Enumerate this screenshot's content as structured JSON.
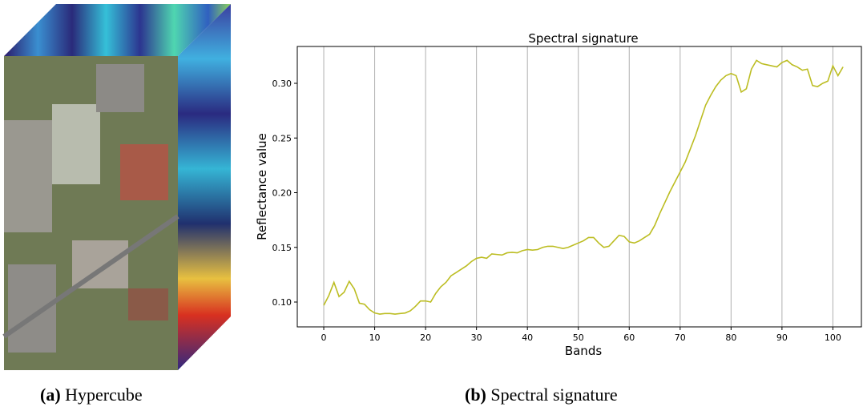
{
  "chart_data": {
    "type": "line",
    "title": "Spectral signature",
    "xlabel": "Bands",
    "ylabel": "Reflectance value",
    "x": [
      0,
      1,
      2,
      3,
      4,
      5,
      6,
      7,
      8,
      9,
      10,
      11,
      12,
      13,
      14,
      15,
      16,
      17,
      18,
      19,
      20,
      21,
      22,
      23,
      24,
      25,
      26,
      27,
      28,
      29,
      30,
      31,
      32,
      33,
      34,
      35,
      36,
      37,
      38,
      39,
      40,
      41,
      42,
      43,
      44,
      45,
      46,
      47,
      48,
      49,
      50,
      51,
      52,
      53,
      54,
      55,
      56,
      57,
      58,
      59,
      60,
      61,
      62,
      63,
      64,
      65,
      66,
      67,
      68,
      69,
      70,
      71,
      72,
      73,
      74,
      75,
      76,
      77,
      78,
      79,
      80,
      81,
      82,
      83,
      84,
      85,
      86,
      87,
      88,
      89,
      90,
      91,
      92,
      93,
      94,
      95,
      96,
      97,
      98,
      99,
      100,
      101,
      102
    ],
    "series": [
      {
        "color": "#bcbd22",
        "values": [
          0.097,
          0.106,
          0.118,
          0.105,
          0.109,
          0.119,
          0.112,
          0.099,
          0.098,
          0.093,
          0.09,
          0.089,
          0.0895,
          0.0895,
          0.089,
          0.0895,
          0.09,
          0.092,
          0.096,
          0.101,
          0.101,
          0.1,
          0.108,
          0.114,
          0.118,
          0.124,
          0.127,
          0.13,
          0.133,
          0.137,
          0.14,
          0.141,
          0.14,
          0.144,
          0.1435,
          0.143,
          0.145,
          0.1455,
          0.145,
          0.147,
          0.148,
          0.1475,
          0.148,
          0.15,
          0.151,
          0.151,
          0.15,
          0.149,
          0.15,
          0.152,
          0.154,
          0.156,
          0.159,
          0.159,
          0.154,
          0.15,
          0.151,
          0.156,
          0.161,
          0.16,
          0.155,
          0.154,
          0.156,
          0.159,
          0.162,
          0.17,
          0.181,
          0.191,
          0.201,
          0.21,
          0.219,
          0.228,
          0.24,
          0.252,
          0.266,
          0.28,
          0.289,
          0.297,
          0.303,
          0.307,
          0.309,
          0.307,
          0.292,
          0.295,
          0.313,
          0.321,
          0.318,
          0.317,
          0.316,
          0.315,
          0.319,
          0.321,
          0.317,
          0.315,
          0.312,
          0.313,
          0.298,
          0.297,
          0.3,
          0.302,
          0.316,
          0.307,
          0.315
        ]
      }
    ],
    "xlim": [
      -5.2,
      105.6
    ],
    "ylim": [
      0.0773,
      0.3337
    ],
    "xticks": [
      0,
      10,
      20,
      30,
      40,
      50,
      60,
      70,
      80,
      90,
      100
    ],
    "yticks": [
      {
        "value": 0.1,
        "label": "0.10"
      },
      {
        "value": 0.15,
        "label": "0.15"
      },
      {
        "value": 0.2,
        "label": "0.20"
      },
      {
        "value": 0.25,
        "label": "0.25"
      },
      {
        "value": 0.3,
        "label": "0.30"
      }
    ],
    "grid": "x"
  },
  "captions": [
    {
      "label": "(a)",
      "text": "Hypercube"
    },
    {
      "label": "(b)",
      "text": "Spectral signature"
    }
  ]
}
